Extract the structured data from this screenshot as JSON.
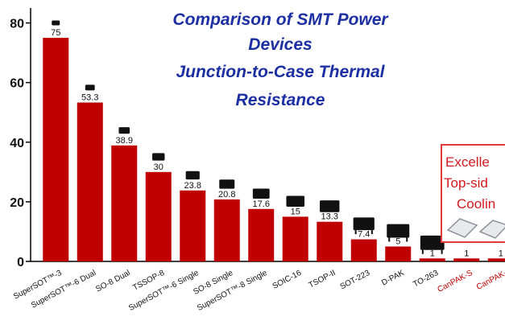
{
  "chart_data": {
    "type": "bar",
    "title_lines": [
      "Comparison of SMT Power",
      "Devices",
      "Junction-to-Case Thermal",
      "Resistance"
    ],
    "xlabel": "",
    "ylabel": "",
    "ylim": [
      0,
      85
    ],
    "yticks": [
      0,
      20,
      40,
      60,
      80
    ],
    "grid": false,
    "categories": [
      "SuperSOT™-3",
      "SuperSOT™-6 Dual",
      "SO-8 Dual",
      "TSSOP-8",
      "SuperSOT™-6 Single",
      "SO-8 Single",
      "SuperSOT™-8 Single",
      "SOIC-16",
      "TSOP-II",
      "SOT-223",
      "D-PAK",
      "TO-263",
      "CanPAK-S",
      "CanPAK-"
    ],
    "values": [
      75,
      53.3,
      38.9,
      30,
      23.8,
      20.8,
      17.6,
      15,
      13.3,
      7.4,
      5,
      1,
      1,
      1
    ],
    "value_labels": [
      "75",
      "53.3",
      "38.9",
      "30",
      "23.8",
      "20.8",
      "17.6",
      "15",
      "13.3",
      "7.4",
      "5",
      "1",
      "1",
      "1"
    ],
    "bar_color": "#c00000",
    "highlight_label_color": "#c00000",
    "highlight_categories": [
      "CanPAK-S",
      "CanPAK-"
    ],
    "callout": {
      "lines": [
        "Excelle",
        "Top-sid",
        "Coolin"
      ],
      "color": "#d4191e"
    }
  }
}
